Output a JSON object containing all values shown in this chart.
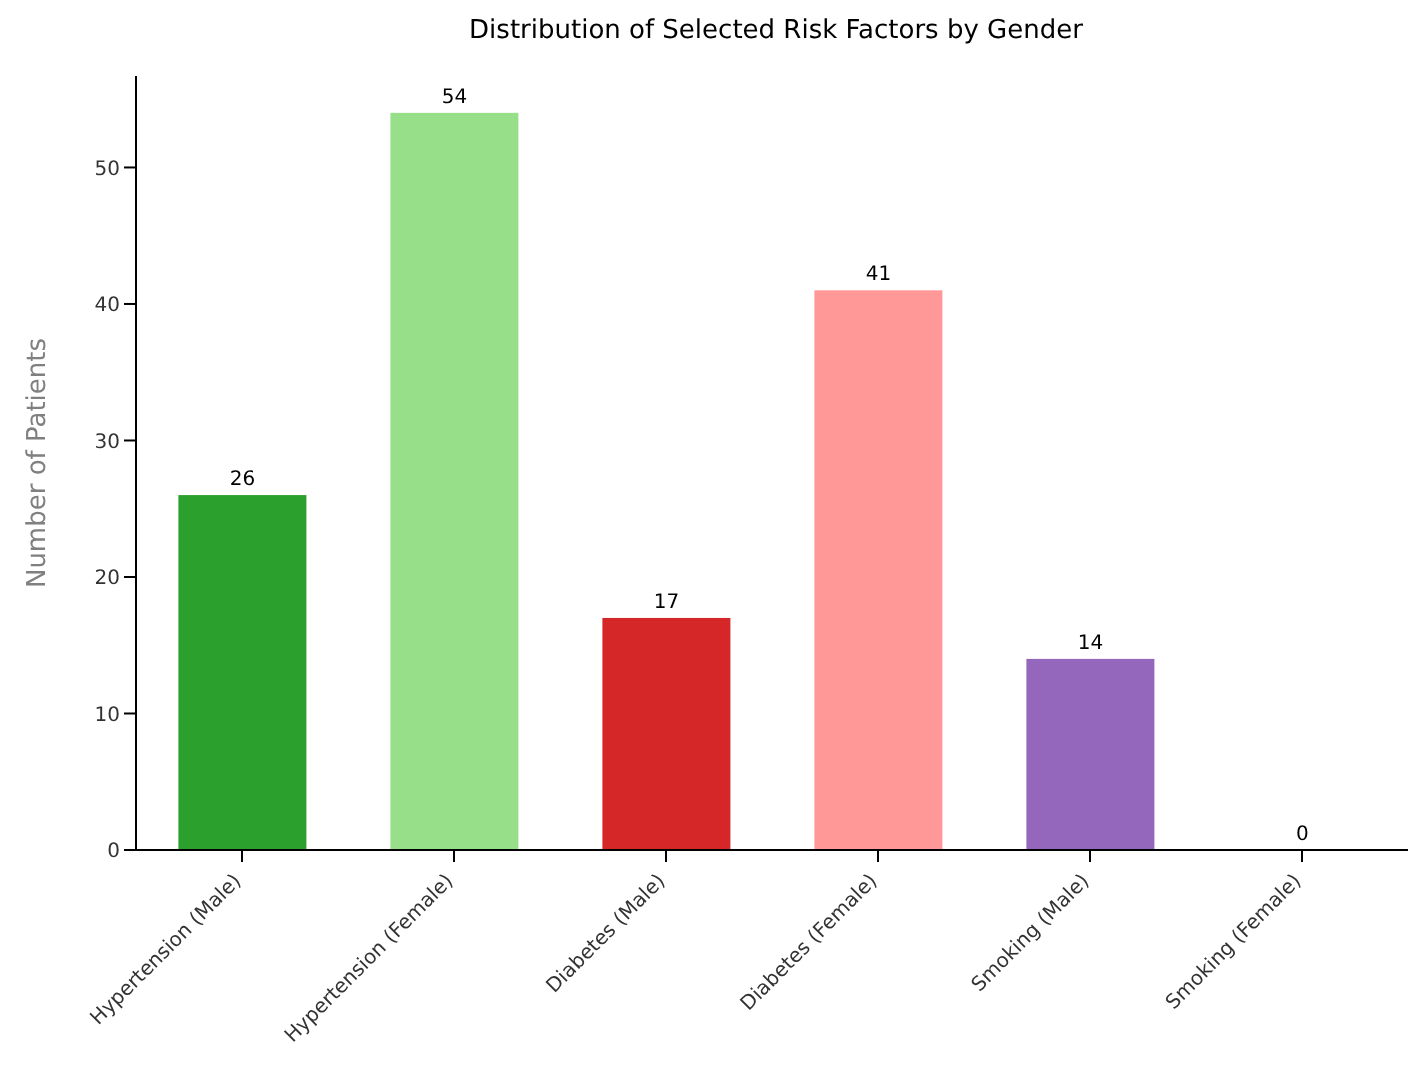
{
  "chart_data": {
    "type": "bar",
    "title": "Distribution of Selected Risk Factors by Gender",
    "ylabel": "Number of Patients",
    "categories": [
      "Hypertension (Male)",
      "Hypertension (Female)",
      "Diabetes (Male)",
      "Diabetes (Female)",
      "Smoking (Male)",
      "Smoking (Female)"
    ],
    "values": [
      26,
      54,
      17,
      41,
      14,
      0
    ],
    "colors": [
      "#2ca02c",
      "#98df8a",
      "#d62728",
      "#ff9896",
      "#9467bd",
      "#c5b0d5"
    ],
    "ylim": [
      0,
      56.7
    ],
    "yticks": [
      0,
      10,
      20,
      30,
      40,
      50
    ],
    "data_labels": true,
    "grid": false
  }
}
